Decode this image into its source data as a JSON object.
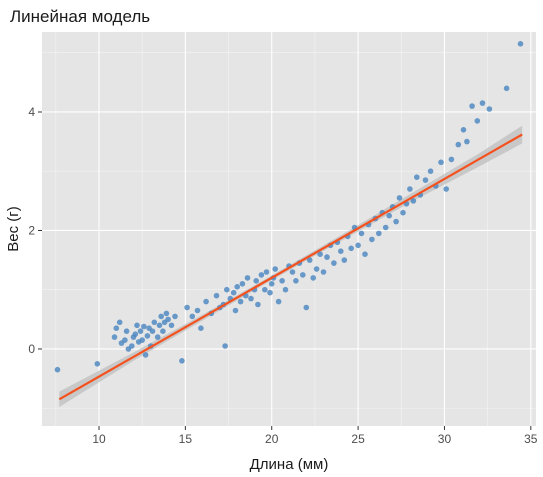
{
  "chart_data": {
    "type": "scatter",
    "title": "Линейная модель",
    "xlabel": "Длина (мм)",
    "ylabel": "Вес (г)",
    "xlim": [
      6.7,
      35.3
    ],
    "ylim": [
      -1.3,
      5.35
    ],
    "x_ticks": [
      10,
      15,
      20,
      25,
      30,
      35
    ],
    "y_ticks": [
      0,
      2,
      4
    ],
    "grid": true,
    "panel_background": "#e5e5e5",
    "point_color": "#4a86c0",
    "line_color": "#f4511e",
    "ribbon_color": "#bdbdbd",
    "fit_line": {
      "x": [
        7.7,
        34.5
      ],
      "y": [
        -0.85,
        3.62
      ]
    },
    "confidence_band": {
      "x": [
        7.7,
        12,
        16,
        20,
        24,
        28,
        32,
        34.5
      ],
      "lower": [
        -0.98,
        -0.2,
        0.48,
        1.16,
        1.82,
        2.47,
        3.08,
        3.47
      ],
      "upper": [
        -0.72,
        -0.06,
        0.58,
        1.24,
        1.92,
        2.61,
        3.3,
        3.77
      ]
    },
    "series": [
      {
        "x": [
          7.6,
          9.9,
          10.9,
          11.0,
          11.2,
          11.3,
          11.5,
          11.6,
          11.7,
          11.9,
          12.0,
          12.1,
          12.2,
          12.3,
          12.4,
          12.5,
          12.6,
          12.7,
          12.8,
          12.9,
          13.0,
          13.1,
          13.2,
          13.4,
          13.5,
          13.6,
          13.7,
          13.8,
          13.9,
          14.0,
          14.2,
          14.4,
          14.8,
          15.1,
          15.4,
          15.7,
          15.9,
          16.2,
          16.5,
          16.8,
          17.0,
          17.2,
          17.3,
          17.4,
          17.6,
          17.8,
          17.9,
          18.0,
          18.2,
          18.3,
          18.5,
          18.6,
          18.8,
          19.0,
          19.1,
          19.2,
          19.4,
          19.6,
          19.7,
          19.9,
          20.0,
          20.1,
          20.2,
          20.4,
          20.6,
          20.8,
          21.0,
          21.2,
          21.4,
          21.6,
          21.8,
          22.0,
          22.2,
          22.4,
          22.6,
          22.8,
          23.0,
          23.2,
          23.4,
          23.6,
          23.8,
          24.0,
          24.2,
          24.4,
          24.6,
          24.8,
          25.0,
          25.2,
          25.4,
          25.6,
          25.8,
          26.0,
          26.2,
          26.4,
          26.6,
          26.8,
          27.0,
          27.2,
          27.4,
          27.6,
          27.8,
          28.0,
          28.2,
          28.4,
          28.6,
          28.9,
          29.2,
          29.5,
          29.8,
          30.1,
          30.4,
          30.8,
          31.1,
          31.3,
          31.6,
          31.9,
          32.2,
          32.6,
          33.6,
          34.4
        ],
        "y": [
          -0.35,
          -0.25,
          0.2,
          0.35,
          0.45,
          0.1,
          0.15,
          0.3,
          0.0,
          0.05,
          0.2,
          0.25,
          0.4,
          0.12,
          0.3,
          0.15,
          0.38,
          -0.1,
          0.22,
          0.35,
          0.05,
          0.3,
          0.45,
          0.2,
          0.4,
          0.55,
          0.3,
          0.45,
          0.6,
          0.5,
          0.4,
          0.55,
          -0.2,
          0.7,
          0.55,
          0.65,
          0.35,
          0.8,
          0.6,
          0.9,
          0.7,
          0.75,
          0.05,
          1.0,
          0.85,
          0.95,
          0.65,
          1.05,
          0.8,
          1.1,
          0.9,
          1.2,
          0.85,
          1.0,
          1.15,
          0.75,
          1.25,
          1.0,
          1.3,
          0.95,
          1.1,
          1.2,
          1.35,
          0.8,
          1.15,
          1.0,
          1.4,
          1.3,
          1.15,
          1.45,
          1.25,
          0.7,
          1.5,
          1.2,
          1.35,
          1.6,
          1.3,
          1.55,
          1.75,
          1.45,
          1.8,
          1.65,
          1.5,
          1.9,
          1.7,
          2.05,
          1.75,
          1.95,
          1.6,
          2.1,
          1.85,
          2.2,
          1.95,
          2.3,
          2.05,
          2.25,
          2.4,
          2.15,
          2.55,
          2.3,
          2.45,
          2.7,
          2.5,
          2.9,
          2.6,
          2.85,
          3.0,
          2.75,
          3.15,
          2.7,
          3.2,
          3.45,
          3.7,
          3.5,
          4.1,
          3.85,
          4.15,
          4.05,
          4.4,
          5.15
        ]
      }
    ]
  }
}
